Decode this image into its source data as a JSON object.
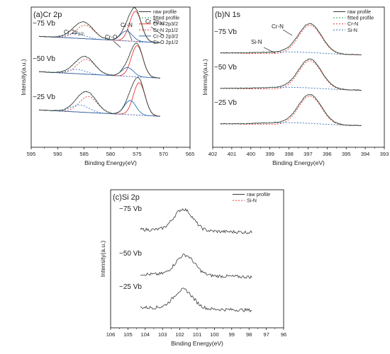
{
  "chart_data": [
    {
      "type": "line",
      "panel_label": "(a)Cr 2p",
      "xlabel": "Binding Energy(eV)",
      "ylabel": "Intensity(a.u.)",
      "xlim": [
        595,
        565
      ],
      "x_ticks": [
        595,
        590,
        585,
        580,
        575,
        570,
        565
      ],
      "legend": [
        "raw profile",
        "fitted profile",
        "Cr-N 2p3/2",
        "Cr-N 2p1/2",
        "Cr-O 2p3/2",
        "Cr-O 2p1/2"
      ],
      "legend_position": "top-right",
      "traces": [
        {
          "name": "−75 Vb",
          "peaks": [
            {
              "label": "Cr-N 2p3/2",
              "x": 575.3,
              "height": 0.85
            },
            {
              "label": "Cr-N 2p1/2",
              "x": 584.8,
              "height": 0.38
            },
            {
              "label": "Cr-O 2p3/2",
              "x": 577.0,
              "height": 0.28
            },
            {
              "label": "Cr-O 2p1/2",
              "x": 586.5,
              "height": 0.14
            }
          ]
        },
        {
          "name": "−50 Vb",
          "peaks": [
            {
              "label": "Cr-N 2p3/2",
              "x": 575.0,
              "height": 0.88
            },
            {
              "label": "Cr-N 2p1/2",
              "x": 584.6,
              "height": 0.42
            },
            {
              "label": "Cr-O 2p3/2",
              "x": 576.8,
              "height": 0.25
            },
            {
              "label": "Cr-O 2p1/2",
              "x": 586.3,
              "height": 0.12
            }
          ]
        },
        {
          "name": "−25 Vb",
          "peaks": [
            {
              "label": "Cr-N 2p3/2",
              "x": 574.6,
              "height": 0.92
            },
            {
              "label": "Cr-N 2p1/2",
              "x": 584.2,
              "height": 0.45
            },
            {
              "label": "Cr-O 2p3/2",
              "x": 576.3,
              "height": 0.4
            },
            {
              "label": "Cr-O 2p1/2",
              "x": 585.8,
              "height": 0.2
            }
          ]
        }
      ],
      "annotations": [
        "Cr 2p1/2",
        "Cr 2p3/2",
        "Cr-N",
        "Cr-O"
      ]
    },
    {
      "type": "line",
      "panel_label": "(b)N 1s",
      "xlabel": "Binding Energy(eV)",
      "ylabel": "Intensity(a.u.)",
      "xlim": [
        402,
        393
      ],
      "x_ticks": [
        402,
        401,
        400,
        399,
        398,
        397,
        396,
        395,
        394,
        393
      ],
      "legend": [
        "raw profile",
        "fitted profile",
        "Cr-N",
        "Si-N"
      ],
      "legend_position": "top-right",
      "traces": [
        {
          "name": "−75 Vb",
          "peaks": [
            {
              "label": "Cr-N",
              "x": 396.9,
              "height": 0.85
            },
            {
              "label": "Si-N",
              "x": 397.9,
              "height": 0.06
            }
          ]
        },
        {
          "name": "−50 Vb",
          "peaks": [
            {
              "label": "Cr-N",
              "x": 396.9,
              "height": 0.85
            },
            {
              "label": "Si-N",
              "x": 397.9,
              "height": 0.06
            }
          ]
        },
        {
          "name": "−25 Vb",
          "peaks": [
            {
              "label": "Cr-N",
              "x": 396.9,
              "height": 0.85
            },
            {
              "label": "Si-N",
              "x": 397.9,
              "height": 0.06
            }
          ]
        }
      ],
      "annotations": [
        "Cr-N",
        "Si-N"
      ]
    },
    {
      "type": "line",
      "panel_label": "(c)Si 2p",
      "xlabel": "Binding Energy(eV)",
      "ylabel": "Intensity(a.u.)",
      "xlim": [
        106,
        96
      ],
      "x_ticks": [
        106,
        105,
        104,
        103,
        102,
        101,
        100,
        99,
        98,
        97,
        96
      ],
      "legend": [
        "raw profile",
        "Si-N"
      ],
      "legend_position": "top-right",
      "traces": [
        {
          "name": "−75 Vb",
          "peaks": [
            {
              "label": "Si-N",
              "x": 101.8,
              "height": 0.8
            }
          ]
        },
        {
          "name": "−50 Vb",
          "peaks": [
            {
              "label": "Si-N",
              "x": 101.7,
              "height": 0.75
            }
          ]
        },
        {
          "name": "−25 Vb",
          "peaks": [
            {
              "label": "Si-N",
              "x": 101.8,
              "height": 0.7
            }
          ]
        }
      ]
    }
  ]
}
